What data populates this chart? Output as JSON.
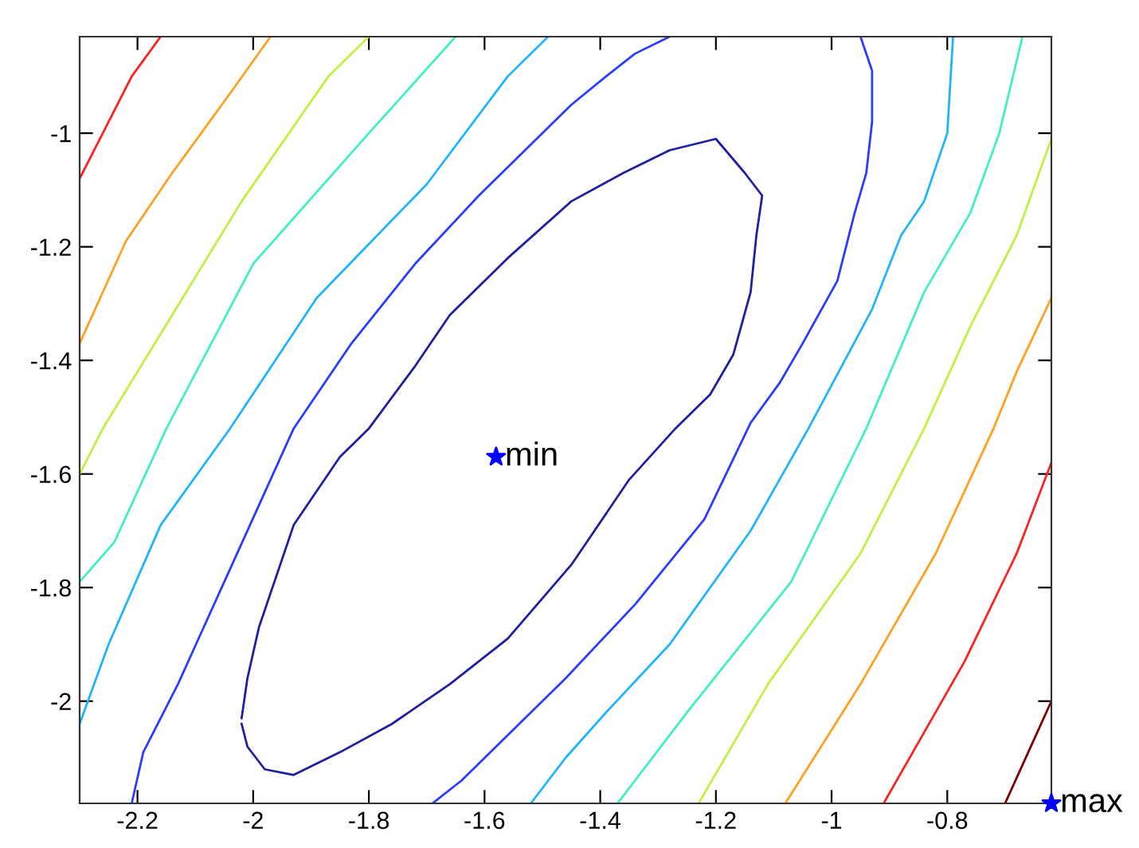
{
  "chart_data": {
    "type": "line",
    "xlim": [
      -2.3,
      -0.62
    ],
    "ylim": [
      -2.18,
      -0.83
    ],
    "xticks": [
      -2.2,
      -2,
      -1.8,
      -1.6,
      -1.4,
      -1.2,
      -1,
      -0.8
    ],
    "yticks": [
      -2,
      -1.8,
      -1.6,
      -1.4,
      -1.2,
      -1
    ],
    "grid": false,
    "legend": false,
    "line_style": "solid",
    "marker": "none",
    "series": [
      {
        "color": "#1f1f9f",
        "x": [
          -2.02,
          -2.01,
          -1.99,
          -1.93,
          -1.85,
          -1.8,
          -1.72,
          -1.66,
          -1.56,
          -1.45,
          -1.36,
          -1.28,
          -1.2,
          -1.15,
          -1.12,
          -1.13,
          -1.14,
          -1.17,
          -1.21,
          -1.27,
          -1.35,
          -1.45,
          -1.56,
          -1.66,
          -1.76,
          -1.85,
          -1.93,
          -1.98,
          -2.01,
          -2.02
        ],
        "values": [
          -2.03,
          -1.96,
          -1.87,
          -1.69,
          -1.57,
          -1.52,
          -1.41,
          -1.32,
          -1.22,
          -1.12,
          -1.07,
          -1.03,
          -1.01,
          -1.07,
          -1.11,
          -1.18,
          -1.28,
          -1.39,
          -1.46,
          -1.52,
          -1.61,
          -1.76,
          -1.89,
          -1.97,
          -2.04,
          -2.09,
          -2.13,
          -2.12,
          -2.08,
          -2.04
        ]
      },
      {
        "color": "#2a3cff",
        "x": [
          -1.28,
          -1.34,
          -1.39,
          -1.45,
          -1.53,
          -1.61,
          -1.72,
          -1.83,
          -1.93,
          -2.05,
          -2.13,
          -2.19,
          -2.21
        ],
        "values": [
          -0.83,
          -0.86,
          -0.9,
          -0.95,
          -1.03,
          -1.11,
          -1.23,
          -1.37,
          -1.52,
          -1.79,
          -1.97,
          -2.09,
          -2.18
        ]
      },
      {
        "color": "#2a3cff",
        "x": [
          -0.95,
          -0.93,
          -0.93,
          -0.94,
          -0.96,
          -0.99,
          -1.05,
          -1.09,
          -1.14,
          -1.22,
          -1.34,
          -1.46,
          -1.56,
          -1.64,
          -1.69
        ],
        "values": [
          -0.83,
          -0.89,
          -0.98,
          -1.07,
          -1.14,
          -1.26,
          -1.37,
          -1.44,
          -1.51,
          -1.68,
          -1.83,
          -1.96,
          -2.06,
          -2.14,
          -2.18
        ]
      },
      {
        "color": "#20b4ff",
        "x": [
          -1.49,
          -1.56,
          -1.7,
          -1.89,
          -2.04,
          -2.16,
          -2.25,
          -2.3
        ],
        "values": [
          -0.83,
          -0.9,
          -1.09,
          -1.29,
          -1.52,
          -1.69,
          -1.9,
          -2.04
        ]
      },
      {
        "color": "#20b4ff",
        "x": [
          -0.79,
          -0.8,
          -0.84,
          -0.88,
          -0.93,
          -1.04,
          -1.14,
          -1.28,
          -1.39,
          -1.46,
          -1.52
        ],
        "values": [
          -0.83,
          -1.0,
          -1.12,
          -1.18,
          -1.31,
          -1.52,
          -1.7,
          -1.9,
          -2.02,
          -2.1,
          -2.18
        ]
      },
      {
        "color": "#40f0c0",
        "x": [
          -1.65,
          -1.8,
          -2.0,
          -2.15,
          -2.24,
          -2.3
        ],
        "values": [
          -0.83,
          -1.0,
          -1.23,
          -1.52,
          -1.72,
          -1.79
        ]
      },
      {
        "color": "#40f0c0",
        "x": [
          -0.67,
          -0.71,
          -0.76,
          -0.84,
          -0.94,
          -1.07,
          -1.25,
          -1.37
        ],
        "values": [
          -0.83,
          -1.0,
          -1.14,
          -1.28,
          -1.52,
          -1.79,
          -2.02,
          -2.18
        ]
      },
      {
        "color": "#c0f040",
        "x": [
          -1.8,
          -1.87,
          -2.02,
          -2.14,
          -2.26,
          -2.3
        ],
        "values": [
          -0.83,
          -0.9,
          -1.12,
          -1.32,
          -1.52,
          -1.6
        ]
      },
      {
        "color": "#c0f040",
        "x": [
          -0.62,
          -0.68,
          -0.76,
          -0.84,
          -0.95,
          -1.11,
          -1.23
        ],
        "values": [
          -1.01,
          -1.18,
          -1.34,
          -1.52,
          -1.74,
          -1.97,
          -2.18
        ]
      },
      {
        "color": "#ffa020",
        "x": [
          -1.97,
          -2.04,
          -2.14,
          -2.22,
          -2.3
        ],
        "values": [
          -0.83,
          -0.93,
          -1.07,
          -1.19,
          -1.37
        ]
      },
      {
        "color": "#ffa020",
        "x": [
          -0.62,
          -0.68,
          -0.72,
          -0.82,
          -0.95,
          -1.08
        ],
        "values": [
          -1.29,
          -1.42,
          -1.52,
          -1.74,
          -1.97,
          -2.18
        ]
      },
      {
        "color": "#ff2020",
        "x": [
          -2.16,
          -2.21,
          -2.26,
          -2.3
        ],
        "values": [
          -0.83,
          -0.9,
          -1.0,
          -1.08
        ]
      },
      {
        "color": "#ff2020",
        "x": [
          -0.62,
          -0.68,
          -0.77,
          -0.91
        ],
        "values": [
          -1.58,
          -1.74,
          -1.93,
          -2.18
        ]
      },
      {
        "color": "#800000",
        "x": [
          -0.62,
          -0.66,
          -0.7
        ],
        "values": [
          -2.0,
          -2.09,
          -2.18
        ]
      },
      {
        "type": "scatter",
        "marker": "star",
        "color": "#0000ff",
        "x": [
          -1.58,
          -0.62
        ],
        "values": [
          -1.57,
          -2.18
        ]
      }
    ],
    "annotations": [
      {
        "text": "min",
        "x": -1.58,
        "y": -1.57
      },
      {
        "text": "max",
        "x": -0.62,
        "y": -2.18
      }
    ]
  }
}
